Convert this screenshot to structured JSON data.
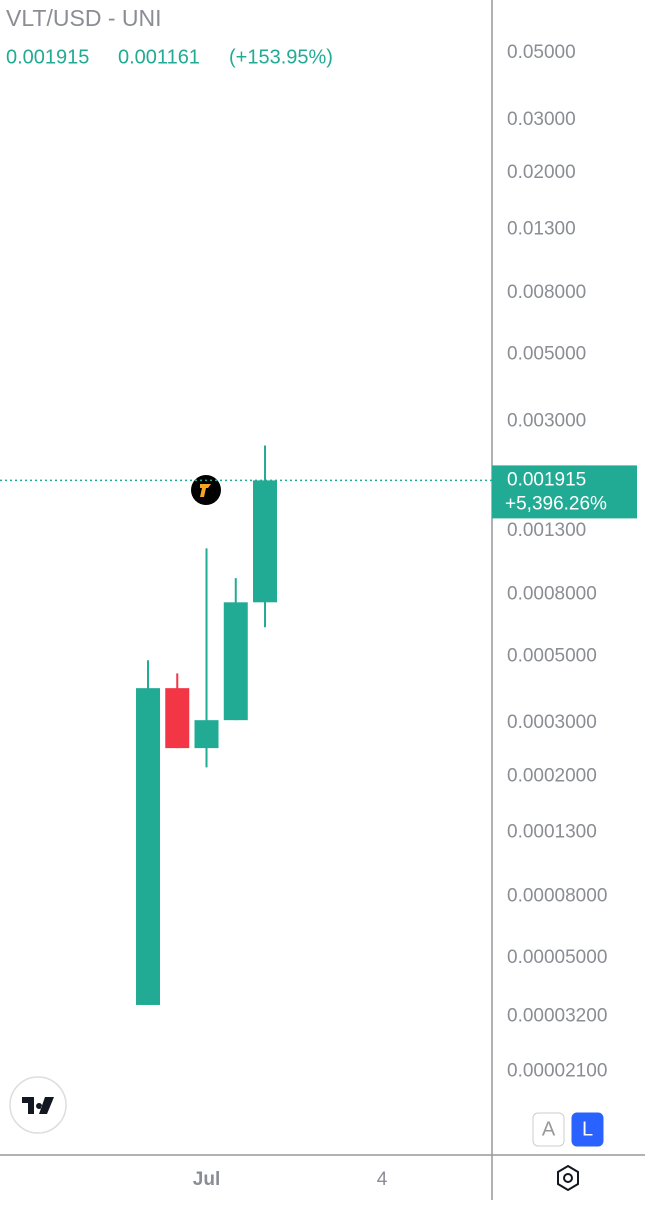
{
  "chart_data": {
    "type": "candlestick",
    "title": "VLT/USD - UNI",
    "header_values": [
      "0.001915",
      "0.001161",
      "(+153.95%)"
    ],
    "x": [
      0,
      1,
      2,
      3,
      4
    ],
    "xlim": [
      -5.06,
      11.76
    ],
    "xticks": [
      {
        "value": 2,
        "label": "Jul"
      },
      {
        "value": 8,
        "label": "4"
      }
    ],
    "series": [
      {
        "open": [
          3.49e-05,
          0.000392,
          0.000248,
          0.000307,
          0.000755
        ],
        "high": [
          0.000485,
          0.000439,
          0.00114,
          0.000908,
          0.0025
        ],
        "low": [
          3.49e-05,
          0.000248,
          0.000214,
          0.000307,
          0.000624
        ],
        "close": [
          0.000392,
          0.000248,
          0.000307,
          0.000755,
          0.001915
        ]
      }
    ],
    "up_color": "#22ab94",
    "down_color": "#f23645",
    "log_scale": true,
    "ylim": [
      1.11e-05,
      0.075
    ],
    "yticks": [
      {
        "value": 0.05,
        "label": "0.05000"
      },
      {
        "value": 0.03,
        "label": "0.03000"
      },
      {
        "value": 0.02,
        "label": "0.02000"
      },
      {
        "value": 0.013,
        "label": "0.01300"
      },
      {
        "value": 0.008,
        "label": "0.008000"
      },
      {
        "value": 0.005,
        "label": "0.005000"
      },
      {
        "value": 0.003,
        "label": "0.003000"
      },
      {
        "value": 0.0013,
        "label": "0.001300"
      },
      {
        "value": 0.0008,
        "label": "0.0008000"
      },
      {
        "value": 0.0005,
        "label": "0.0005000"
      },
      {
        "value": 0.0003,
        "label": "0.0003000"
      },
      {
        "value": 0.0002,
        "label": "0.0002000"
      },
      {
        "value": 0.00013,
        "label": "0.0001300"
      },
      {
        "value": 8e-05,
        "label": "0.00008000"
      },
      {
        "value": 5e-05,
        "label": "0.00005000"
      },
      {
        "value": 3.2e-05,
        "label": "0.00003200"
      },
      {
        "value": 2.1e-05,
        "label": "0.00002100"
      }
    ],
    "last_price": 0.001915,
    "last_change": "+5,396.26%",
    "scale_buttons": [
      "A",
      "L"
    ]
  }
}
